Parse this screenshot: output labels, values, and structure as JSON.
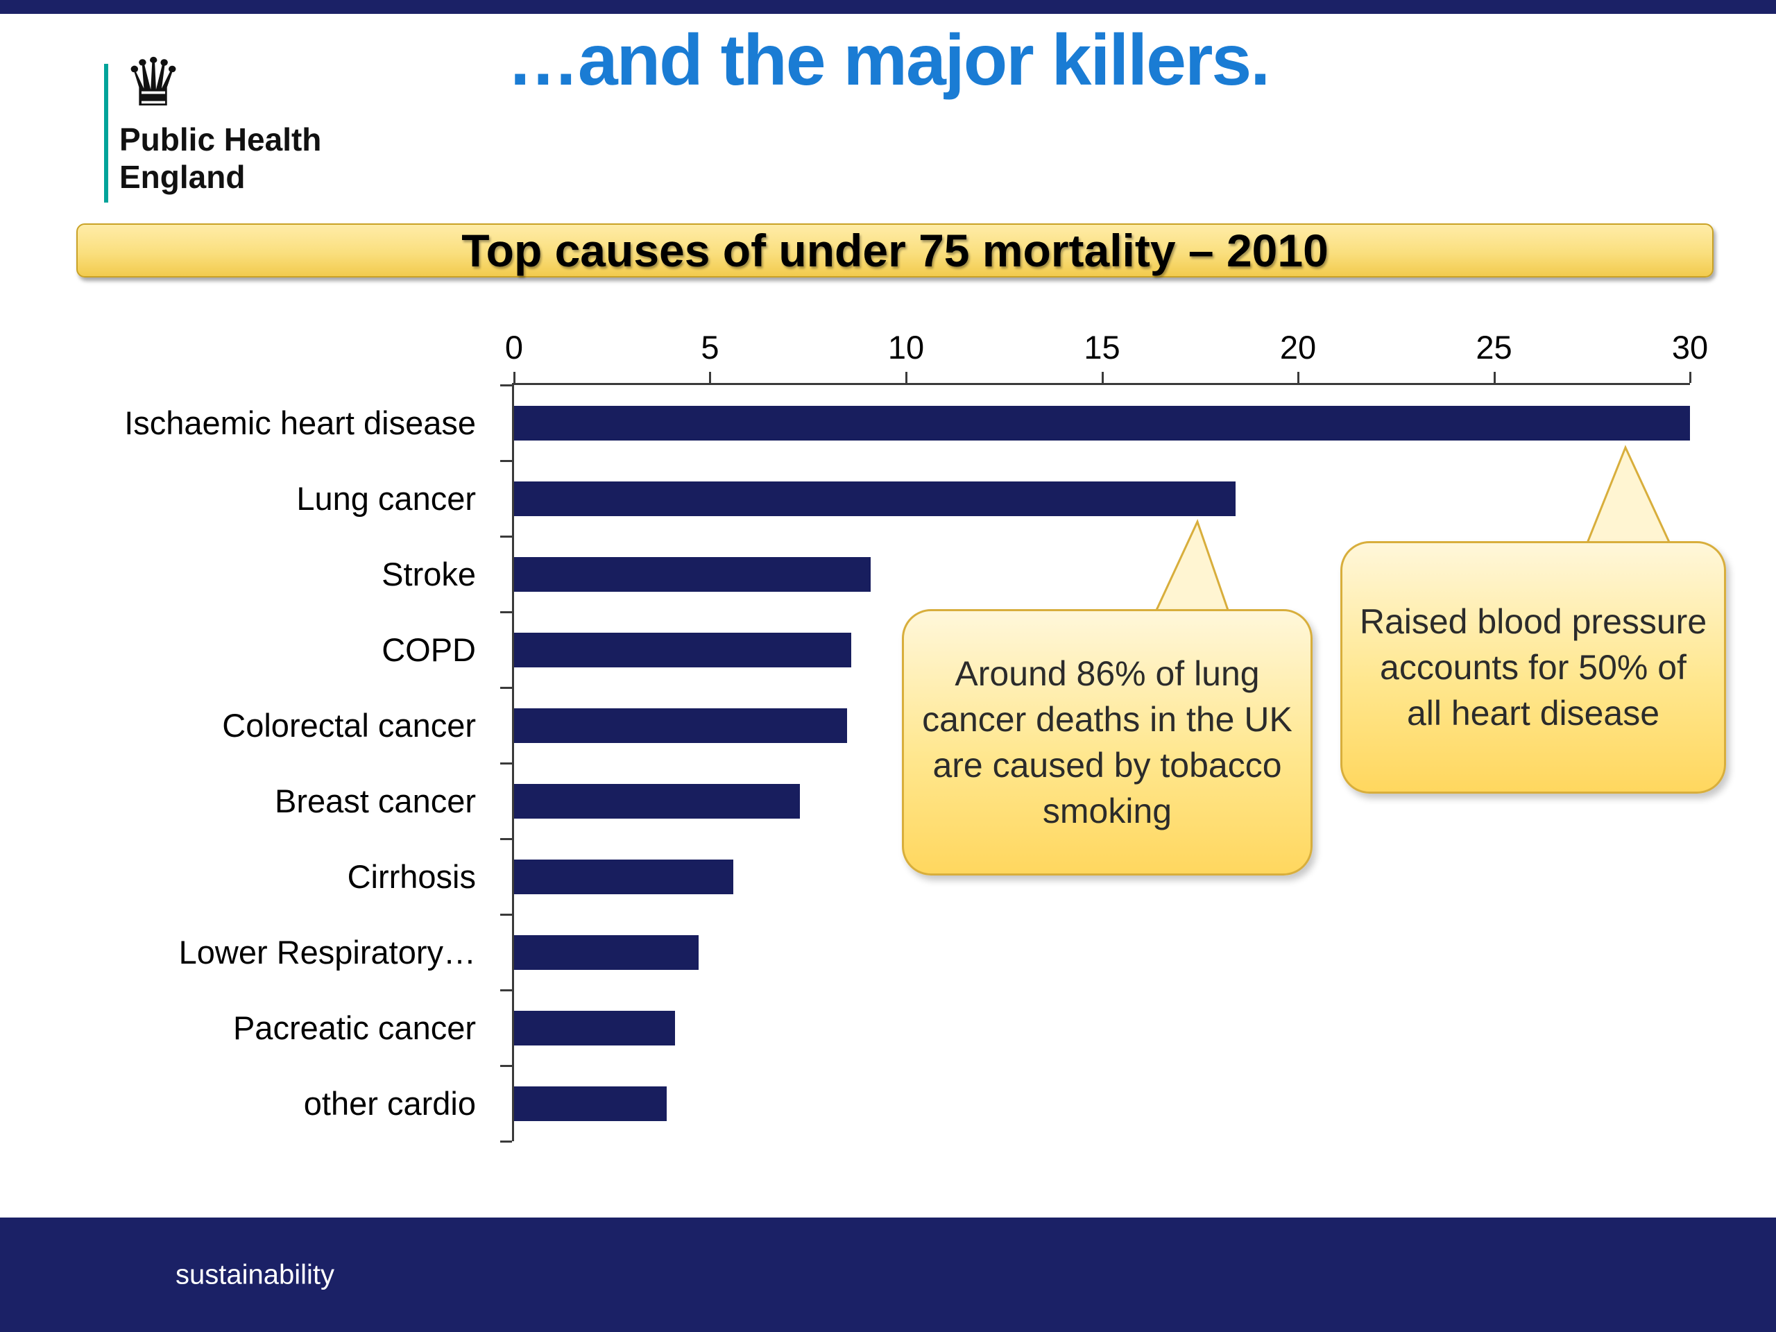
{
  "slide": {
    "title": "…and the major killers.",
    "logo": {
      "line1": "Public Health",
      "line2": "England"
    },
    "footer": "sustainability"
  },
  "chart_data": {
    "type": "bar",
    "orientation": "horizontal",
    "title": "Top causes of under 75 mortality – 2010",
    "categories": [
      "Ischaemic heart disease",
      "Lung cancer",
      "Stroke",
      "COPD",
      "Colorectal cancer",
      "Breast cancer",
      "Cirrhosis",
      "Lower Respiratory…",
      "Pacreatic cancer",
      "other cardio"
    ],
    "values": [
      30,
      18.4,
      9.1,
      8.6,
      8.5,
      7.3,
      5.6,
      4.7,
      4.1,
      3.9
    ],
    "xlim": [
      0,
      30
    ],
    "xticks": [
      0,
      5,
      10,
      15,
      20,
      25,
      30
    ],
    "xlabel": "",
    "ylabel": "",
    "grid": false,
    "legend": false,
    "bar_color": "#181e5e"
  },
  "callouts": [
    {
      "text": "Around 86% of lung cancer deaths in the UK are caused by tobacco smoking"
    },
    {
      "text": "Raised blood pressure accounts for 50% of all heart disease"
    }
  ],
  "colors": {
    "accent_navy": "#1b2166",
    "bar_navy": "#181e5e",
    "title_blue": "#1a7cd4",
    "banner_gold": "#f2cb4e",
    "callout_gold_border": "#d8ae3c",
    "teal_rule": "#00a39a",
    "axis": "#3a3a3a"
  }
}
